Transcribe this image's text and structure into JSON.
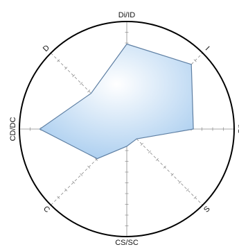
{
  "chart_data": {
    "type": "radar",
    "axes": [
      {
        "label": "Di/ID",
        "value": 0.79
      },
      {
        "label": "I",
        "value": 0.85
      },
      {
        "label": "I/S",
        "value": 0.62
      },
      {
        "label": "S",
        "value": 0.13
      },
      {
        "label": "CS/SC",
        "value": 0.16
      },
      {
        "label": "C",
        "value": 0.39
      },
      {
        "label": "CD/DC",
        "value": 0.81
      },
      {
        "label": "D",
        "value": 0.47
      }
    ],
    "range": [
      0,
      1
    ],
    "colors": {
      "fill_center": "#ffffff",
      "fill_edge": "#a9cdef",
      "stroke": "#5e7fa3",
      "axis": "#8a8a8a",
      "circle": "#000000"
    }
  }
}
